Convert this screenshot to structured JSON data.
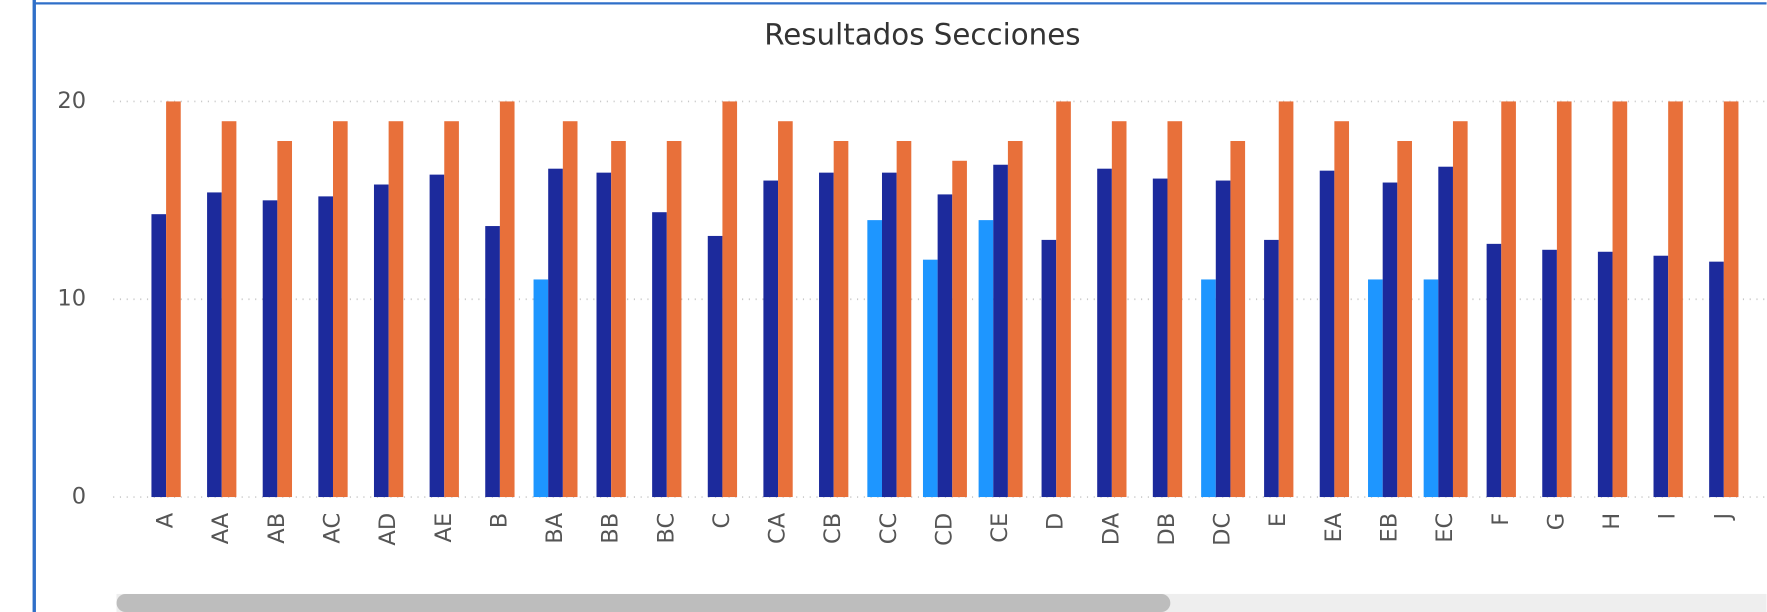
{
  "chart_data": {
    "type": "bar",
    "title": "Resultados Secciones",
    "categories": [
      "A",
      "AA",
      "AB",
      "AC",
      "AD",
      "AE",
      "B",
      "BA",
      "BB",
      "BC",
      "C",
      "CA",
      "CB",
      "CC",
      "CD",
      "CE",
      "D",
      "DA",
      "DB",
      "DC",
      "E",
      "EA",
      "EB",
      "EC",
      "F",
      "G",
      "H",
      "I",
      "J"
    ],
    "series": [
      {
        "color": "#1e96ff",
        "values": [
          null,
          null,
          null,
          null,
          null,
          null,
          null,
          11,
          null,
          null,
          null,
          null,
          null,
          14,
          12,
          14,
          null,
          null,
          null,
          11,
          null,
          null,
          11,
          11,
          null,
          null,
          null,
          null,
          null
        ]
      },
      {
        "color": "#1c2a9c",
        "values": [
          14.3,
          15.4,
          15.0,
          15.2,
          15.8,
          16.3,
          13.7,
          16.6,
          16.4,
          14.4,
          13.2,
          16.0,
          16.4,
          16.4,
          15.3,
          16.8,
          13.0,
          16.6,
          16.1,
          16.0,
          13.0,
          16.5,
          15.9,
          16.7,
          12.8,
          12.5,
          12.4,
          12.2,
          11.9
        ]
      },
      {
        "color": "#e8703a",
        "values": [
          20,
          19,
          18,
          19,
          19,
          19,
          20,
          19,
          18,
          18,
          20,
          19,
          18,
          18,
          17,
          18,
          20,
          19,
          19,
          18,
          20,
          19,
          18,
          19,
          20,
          20,
          20,
          20,
          20
        ]
      }
    ],
    "ylim": [
      0,
      20
    ],
    "yticks": [
      0,
      10,
      20
    ],
    "grid": true
  }
}
